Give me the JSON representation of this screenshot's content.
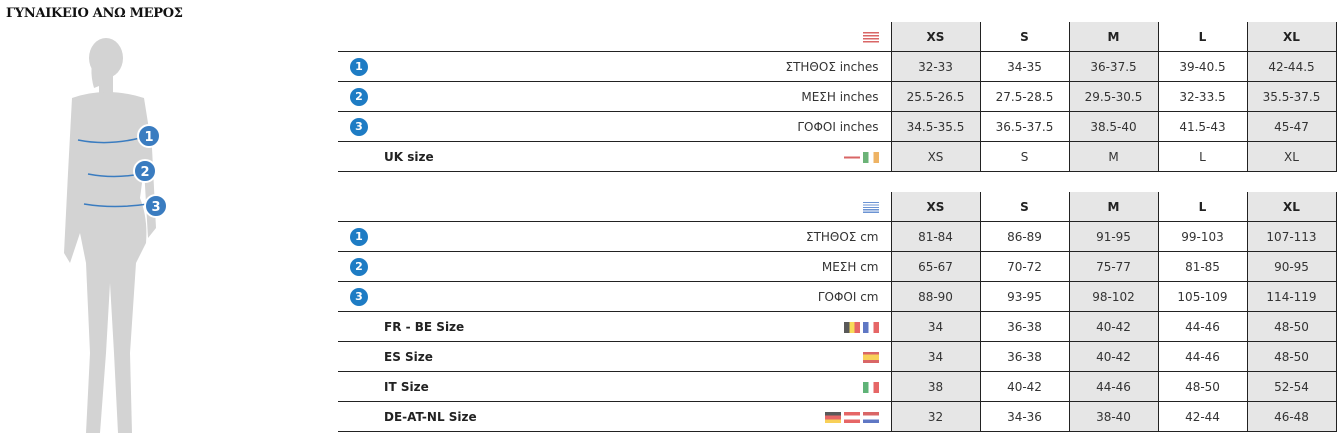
{
  "title": "ΓΥΝΑΙΚΕΙΟ ΑΝΩ ΜΕΡΟΣ",
  "sizes": [
    "XS",
    "S",
    "M",
    "L",
    "XL"
  ],
  "accent": "#1e7cc4",
  "table_us": {
    "flag": [
      "us-flag"
    ],
    "rows": [
      {
        "num": "1",
        "label": "ΣΤΗΘΟΣ inches",
        "values": [
          "32-33",
          "34-35",
          "36-37.5",
          "39-40.5",
          "42-44.5"
        ]
      },
      {
        "num": "2",
        "label": "ΜΕΣΗ inches",
        "values": [
          "25.5-26.5",
          "27.5-28.5",
          "29.5-30.5",
          "32-33.5",
          "35.5-37.5"
        ]
      },
      {
        "num": "3",
        "label": "ΓΟΦΟΙ inches",
        "values": [
          "34.5-35.5",
          "36.5-37.5",
          "38.5-40",
          "41.5-43",
          "45-47"
        ]
      },
      {
        "label": "UK size",
        "flags": [
          "uk-flag",
          "ireland-flag"
        ],
        "values": [
          "XS",
          "S",
          "M",
          "L",
          "XL"
        ]
      }
    ]
  },
  "table_eu": {
    "flag": [
      "greece-flag"
    ],
    "rows": [
      {
        "num": "1",
        "label": "ΣΤΗΘΟΣ cm",
        "values": [
          "81-84",
          "86-89",
          "91-95",
          "99-103",
          "107-113"
        ]
      },
      {
        "num": "2",
        "label": "ΜΕΣΗ cm",
        "values": [
          "65-67",
          "70-72",
          "75-77",
          "81-85",
          "90-95"
        ]
      },
      {
        "num": "3",
        "label": "ΓΟΦΟΙ cm",
        "values": [
          "88-90",
          "93-95",
          "98-102",
          "105-109",
          "114-119"
        ]
      },
      {
        "label": "FR - BE Size",
        "flags": [
          "belgium-flag",
          "france-flag"
        ],
        "values": [
          "34",
          "36-38",
          "40-42",
          "44-46",
          "48-50"
        ]
      },
      {
        "label": "ES Size",
        "flags": [
          "spain-flag"
        ],
        "values": [
          "34",
          "36-38",
          "40-42",
          "44-46",
          "48-50"
        ]
      },
      {
        "label": "IT Size",
        "flags": [
          "italy-flag"
        ],
        "values": [
          "38",
          "40-42",
          "44-46",
          "48-50",
          "52-54"
        ]
      },
      {
        "label": "DE-AT-NL Size",
        "flags": [
          "germany-flag",
          "austria-flag",
          "netherlands-flag"
        ],
        "values": [
          "32",
          "34-36",
          "38-40",
          "42-44",
          "46-48"
        ]
      }
    ]
  },
  "figure_markers": [
    "1",
    "2",
    "3"
  ]
}
